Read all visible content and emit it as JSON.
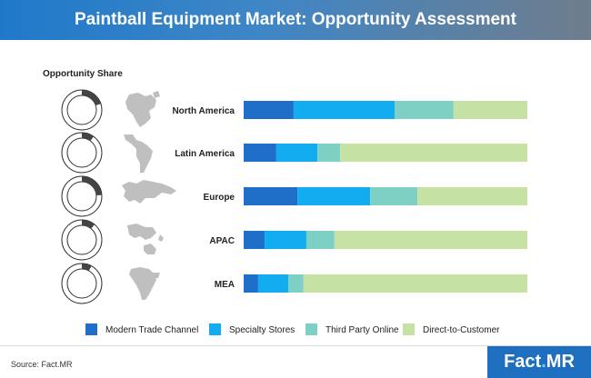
{
  "header": {
    "title": "Paintball Equipment Market: Opportunity Assessment"
  },
  "colors": {
    "banner_start": "#1f79c9",
    "banner_end": "#6f7d8c",
    "ring_fill": "#444444",
    "ring_outline": "#333333",
    "map": "#bfbfbf",
    "logo_bg": "#1f6fc0"
  },
  "opportunity_label": "Opportunity Share",
  "opportunity_share": [
    {
      "region": "North America",
      "share": 0.2
    },
    {
      "region": "Latin America",
      "share": 0.1
    },
    {
      "region": "Europe",
      "share": 0.24
    },
    {
      "region": "APAC",
      "share": 0.11
    },
    {
      "region": "MEA",
      "share": 0.08
    }
  ],
  "icons": [
    "north-america-map-icon",
    "latin-america-map-icon",
    "europe-map-icon",
    "apac-map-icon",
    "mea-map-icon"
  ],
  "chart_data": {
    "type": "bar",
    "orientation": "horizontal",
    "stacked": true,
    "normalized_to": 100,
    "categories": [
      "North America",
      "Latin America",
      "Europe",
      "APAC",
      "MEA"
    ],
    "series": [
      {
        "name": "Modern Trade Channel",
        "color": "#1f6ec7",
        "values": [
          17.6,
          11.5,
          19.0,
          7.4,
          5.1
        ]
      },
      {
        "name": "Specialty Stores",
        "color": "#12adf0",
        "values": [
          35.6,
          14.5,
          25.6,
          14.7,
          10.6
        ]
      },
      {
        "name": "Third Party Online",
        "color": "#7fd0c4",
        "values": [
          20.8,
          8.0,
          16.7,
          9.9,
          5.4
        ]
      },
      {
        "name": "Direct-to-Customer",
        "color": "#c5e2a4",
        "values": [
          26.0,
          66.0,
          38.7,
          68.0,
          78.9
        ]
      }
    ],
    "legend_position": "bottom",
    "grid": false,
    "xlim": [
      0,
      100
    ]
  },
  "footer": {
    "source": "Source: Fact.MR",
    "logo_main": "Fact",
    "logo_dot": ".",
    "logo_suffix": "MR"
  }
}
